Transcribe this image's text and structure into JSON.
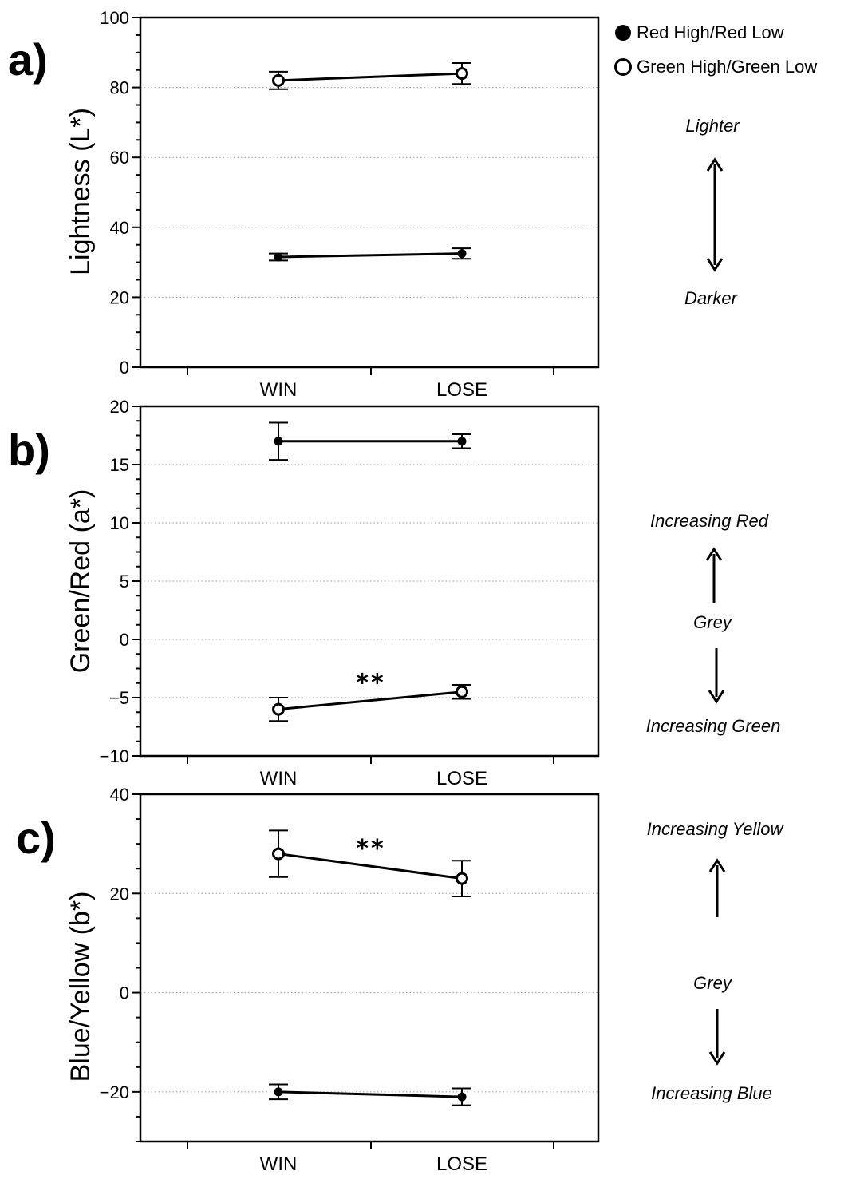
{
  "legend": {
    "entries": [
      {
        "label": "Red High/Red Low",
        "marker": "filled"
      },
      {
        "label": "Green High/Green Low",
        "marker": "open"
      }
    ]
  },
  "chart_data": [
    {
      "type": "line",
      "panel_label": "a)",
      "ylabel": "Lightness (L*)",
      "categories": [
        "WIN",
        "LOSE"
      ],
      "ylim": [
        0,
        100
      ],
      "yticks": [
        0,
        20,
        40,
        60,
        80,
        100
      ],
      "grid": "horizontal dotted",
      "series": [
        {
          "name": "Green High/Green Low",
          "marker": "open",
          "values": [
            82,
            84
          ],
          "errors": [
            2.5,
            3
          ]
        },
        {
          "name": "Red High/Red Low",
          "marker": "filled",
          "values": [
            31.5,
            32.5
          ],
          "errors": [
            1,
            1.5
          ]
        }
      ],
      "direction_labels": {
        "top": "Lighter",
        "bottom": "Darker"
      },
      "significance": null
    },
    {
      "type": "line",
      "panel_label": "b)",
      "ylabel": "Green/Red (a*)",
      "categories": [
        "WIN",
        "LOSE"
      ],
      "ylim": [
        -10,
        20
      ],
      "yticks": [
        -10,
        -5,
        0,
        5,
        10,
        15,
        20
      ],
      "grid": "horizontal dotted",
      "series": [
        {
          "name": "Red High/Red Low",
          "marker": "filled",
          "values": [
            17,
            17
          ],
          "errors": [
            1.6,
            0.6
          ]
        },
        {
          "name": "Green High/Green Low",
          "marker": "open",
          "values": [
            -6,
            -4.5
          ],
          "errors": [
            1,
            0.6
          ]
        }
      ],
      "direction_labels": {
        "top": "Increasing Red",
        "middle": "Grey",
        "bottom": "Increasing Green"
      },
      "significance": {
        "text": "**",
        "series": "Green High/Green Low"
      }
    },
    {
      "type": "line",
      "panel_label": "c)",
      "ylabel": "Blue/Yellow (b*)",
      "categories": [
        "WIN",
        "LOSE"
      ],
      "ylim": [
        -30,
        40
      ],
      "yticks": [
        -20,
        0,
        20,
        40
      ],
      "grid": "horizontal dotted",
      "series": [
        {
          "name": "Green High/Green Low",
          "marker": "open",
          "values": [
            28,
            23
          ],
          "errors": [
            4.7,
            3.6
          ]
        },
        {
          "name": "Red High/Red Low",
          "marker": "filled",
          "values": [
            -20,
            -21
          ],
          "errors": [
            1.5,
            1.7
          ]
        }
      ],
      "direction_labels": {
        "top": "Increasing Yellow",
        "middle": "Grey",
        "bottom": "Increasing Blue"
      },
      "significance": {
        "text": "**",
        "series": "Green High/Green Low"
      }
    }
  ]
}
